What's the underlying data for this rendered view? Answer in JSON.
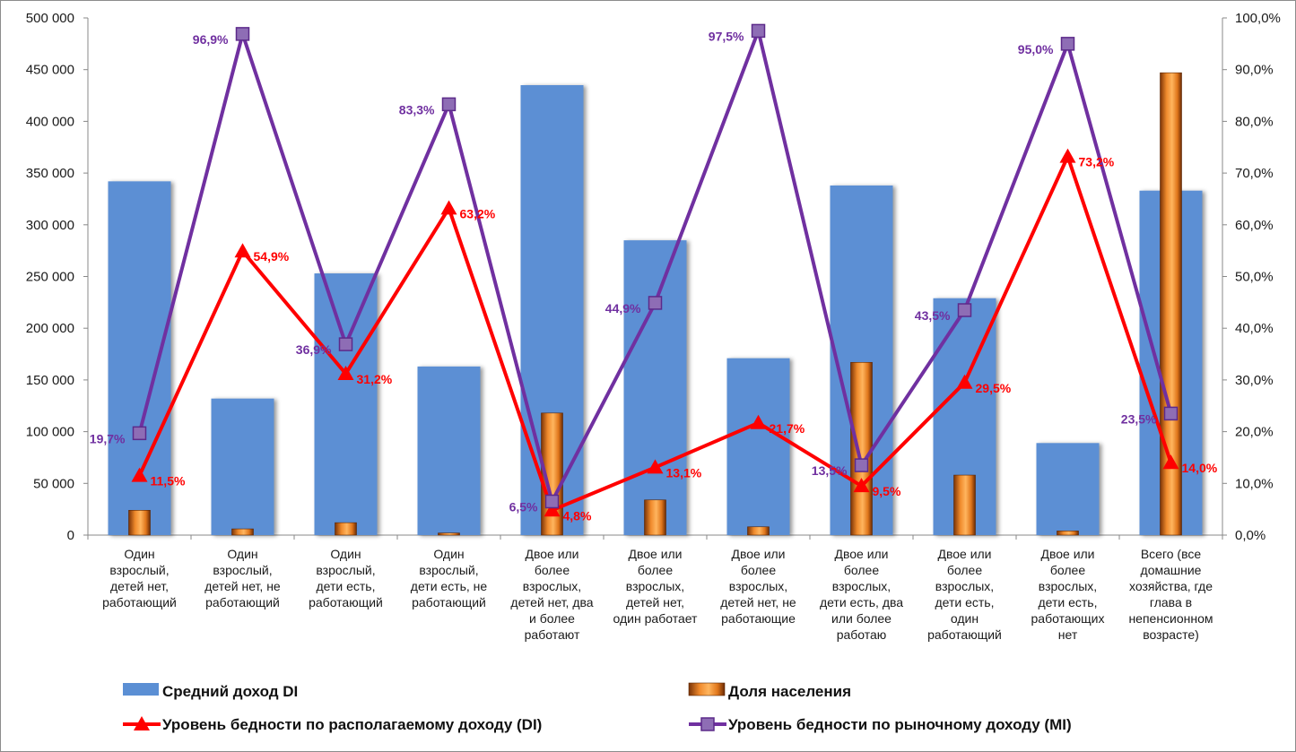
{
  "chart_data": {
    "type": "bar",
    "categories": [
      [
        "Один",
        "взрослый,",
        "детей нет,",
        "работающий"
      ],
      [
        "Один",
        "взрослый,",
        "детей нет, не",
        "работающий"
      ],
      [
        "Один",
        "взрослый,",
        "дети есть,",
        "работающий"
      ],
      [
        "Один",
        "взрослый,",
        "дети есть, не",
        "работающий"
      ],
      [
        "Двое или",
        "более",
        "взрослых,",
        "детей нет, два",
        "и более",
        "работают"
      ],
      [
        "Двое или",
        "более",
        "взрослых,",
        "детей нет,",
        "один работает"
      ],
      [
        "Двое или",
        "более",
        "взрослых,",
        "детей нет, не",
        "работающие"
      ],
      [
        "Двое или",
        "более",
        "взрослых,",
        "дети есть, два",
        "или более",
        "работаю"
      ],
      [
        "Двое или",
        "более",
        "взрослых,",
        "дети есть,",
        "один",
        "работающий"
      ],
      [
        "Двое или",
        "более",
        "взрослых,",
        "дети есть,",
        "работающих",
        "нет"
      ],
      [
        "Всего (все",
        "домашние",
        "хозяйства, где",
        "глава в",
        "непенсионном",
        "возрасте)"
      ]
    ],
    "y_left": {
      "min": 0,
      "max": 500000,
      "step": 50000,
      "ticks": [
        "0",
        "50 000",
        "100 000",
        "150 000",
        "200 000",
        "250 000",
        "300 000",
        "350 000",
        "400 000",
        "450 000",
        "500 000"
      ]
    },
    "y_right": {
      "min": 0,
      "max": 100,
      "step": 10,
      "ticks": [
        "0,0%",
        "10,0%",
        "20,0%",
        "30,0%",
        "40,0%",
        "50,0%",
        "60,0%",
        "70,0%",
        "80,0%",
        "90,0%",
        "100,0%"
      ]
    },
    "grid": false,
    "legend_position": "bottom",
    "series": [
      {
        "name": "Средний доход DI",
        "kind": "bar",
        "axis": "left",
        "color": "#5B8FD4",
        "values": [
          342000,
          132000,
          253000,
          163000,
          435000,
          285000,
          171000,
          338000,
          229000,
          89000,
          333000
        ]
      },
      {
        "name": "Доля населения",
        "kind": "bar",
        "axis": "left",
        "color": "#E0761B",
        "values": [
          24000,
          6000,
          12000,
          2000,
          118000,
          34000,
          8000,
          167000,
          58000,
          4000,
          447000
        ]
      },
      {
        "name": "Уровень бедности по располагаемому доходу (DI)",
        "kind": "line",
        "axis": "right",
        "color": "#FF0000",
        "marker": "triangle",
        "values": [
          11.5,
          54.9,
          31.2,
          63.2,
          4.8,
          13.1,
          21.7,
          9.5,
          29.5,
          73.2,
          14.0
        ],
        "labels": [
          "11,5%",
          "54,9%",
          "31,2%",
          "63,2%",
          "4,8%",
          "13,1%",
          "21,7%",
          "9,5%",
          "29,5%",
          "73,2%",
          "14,0%"
        ]
      },
      {
        "name": "Уровень бедности по рыночному доходу (MI)",
        "kind": "line",
        "axis": "right",
        "color": "#7030A0",
        "marker": "square",
        "values": [
          19.7,
          96.9,
          36.9,
          83.3,
          6.5,
          44.9,
          97.5,
          13.5,
          43.5,
          95.0,
          23.5
        ],
        "labels": [
          "19,7%",
          "96,9%",
          "36,9%",
          "83,3%",
          "6,5%",
          "44,9%",
          "97,5%",
          "13,5%",
          "43,5%",
          "95,0%",
          "23,5%"
        ]
      }
    ]
  }
}
